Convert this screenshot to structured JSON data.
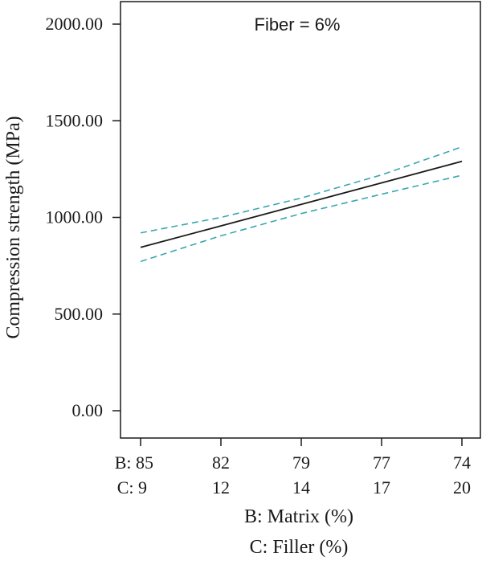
{
  "chart_data": {
    "type": "line",
    "annotation": "Fiber = 6%",
    "ylabel": "Compression strength (MPa)",
    "xlabels": [
      "B: Matrix (%)",
      "C: Filler (%)"
    ],
    "ylim": [
      0,
      2000
    ],
    "yticks": [
      "0.00",
      "500.00",
      "1000.00",
      "1500.00",
      "2000.00"
    ],
    "x_positions": [
      0,
      1,
      2,
      3,
      4
    ],
    "xticks_b": [
      "B: 85",
      "82",
      "79",
      "77",
      "74"
    ],
    "xticks_c": [
      "C: 9",
      "12",
      "14",
      "17",
      "20"
    ],
    "series": [
      {
        "role": "prediction",
        "color": "#1a1a1a",
        "dash": "solid",
        "x": [
          0,
          4
        ],
        "y": [
          845,
          1290
        ]
      },
      {
        "role": "upper-interval",
        "color": "#3aa7b0",
        "dash": "dashed",
        "x": [
          0,
          1,
          2,
          3,
          4
        ],
        "y": [
          920,
          1000,
          1100,
          1220,
          1365
        ]
      },
      {
        "role": "lower-interval",
        "color": "#3aa7b0",
        "dash": "dashed",
        "x": [
          0,
          1,
          2,
          3,
          4
        ],
        "y": [
          772,
          905,
          1020,
          1120,
          1218
        ]
      }
    ],
    "grid": false,
    "legend": "none"
  }
}
